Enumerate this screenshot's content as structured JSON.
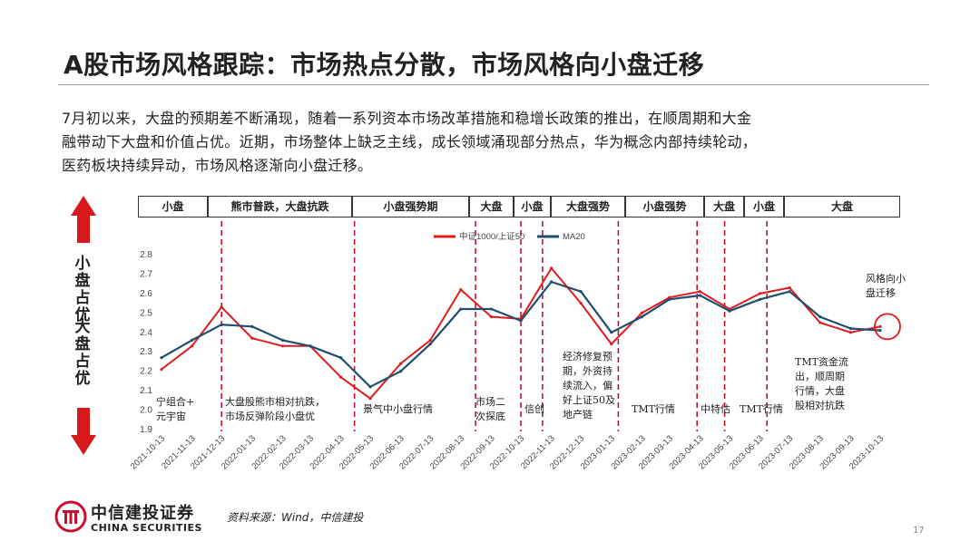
{
  "title": "A股市场风格跟踪：市场热点分散，市场风格向小盘迁移",
  "paragraph": [
    "7月初以来，大盘的预期差不断涌现，随着一系列资本市场改革措施和稳增长政策的推出，在顺周期和大金",
    "融带动下大盘和价值占优。近期，市场整体上缺乏主线，成长领域涌现部分热点，华为概念内部持续轮动，",
    "医药板块持续异动，市场风格逐渐向小盘迁移。"
  ],
  "side": {
    "top_label": "小盘占优",
    "bottom_label": "大盘占优",
    "arrow_color": "#d7191c"
  },
  "phases": [
    "小盘",
    "熊市普跌，大盘抗跌",
    "小盘强势期",
    "大盘",
    "小盘",
    "大盘强势",
    "小盘强势",
    "大盘",
    "小盘",
    "大盘"
  ],
  "annotations": [
    "宁组合+\n元宇宙",
    "大盘股熊市相对抗跌，\n市场反弹阶段小盘优",
    "景气中小盘行情",
    "市场二\n次探底",
    "信创",
    "经济修复预\n期，外资持\n续流入，偏\n好上证50及\n地产链",
    "TMT行情",
    "中特估",
    "TMT行情",
    "TMT资金流\n出，顺周期\n行情，大盘\n股相对抗跌",
    "风格向小\n盘迁移"
  ],
  "chart_data": {
    "type": "line",
    "title": "",
    "xlabel": "",
    "ylabel": "",
    "ylim": [
      1.9,
      2.8
    ],
    "yticks": [
      "1.9",
      "2.0",
      "2.1",
      "2.2",
      "2.3",
      "2.4",
      "2.5",
      "2.6",
      "2.7",
      "2.8"
    ],
    "grid": false,
    "legend": "top-center",
    "x": [
      "2021-10-13",
      "2021-11-13",
      "2021-12-13",
      "2022-01-13",
      "2022-02-13",
      "2022-03-13",
      "2022-04-13",
      "2022-05-13",
      "2022-06-13",
      "2022-07-13",
      "2022-08-13",
      "2022-09-13",
      "2022-10-13",
      "2022-11-13",
      "2022-12-13",
      "2023-01-13",
      "2023-02-13",
      "2023-03-13",
      "2023-04-13",
      "2023-05-13",
      "2023-06-13",
      "2023-07-13",
      "2023-08-13",
      "2023-09-13",
      "2023-10-13"
    ],
    "series": [
      {
        "name": "中证1000/上证50",
        "color": "#e3191b",
        "values": [
          2.21,
          2.33,
          2.53,
          2.37,
          2.33,
          2.33,
          2.17,
          2.06,
          2.24,
          2.36,
          2.62,
          2.48,
          2.47,
          2.73,
          2.55,
          2.34,
          2.5,
          2.58,
          2.61,
          2.52,
          2.6,
          2.63,
          2.45,
          2.4,
          2.43
        ]
      },
      {
        "name": "MA20",
        "color": "#1f4e6e",
        "values": [
          2.27,
          2.36,
          2.44,
          2.43,
          2.36,
          2.33,
          2.27,
          2.12,
          2.2,
          2.34,
          2.52,
          2.52,
          2.46,
          2.66,
          2.61,
          2.4,
          2.48,
          2.57,
          2.59,
          2.51,
          2.57,
          2.61,
          2.48,
          2.42,
          2.41
        ]
      }
    ],
    "xtick_labels": [
      "2021-10-13",
      "2021-11-13",
      "2021-12-13",
      "2022-01-13",
      "2022-02-13",
      "2022-03-13",
      "2022-04-13",
      "2022-05-13",
      "2022-06-13",
      "2022-07-13",
      "2022-08-13",
      "2022-09-13",
      "2022-10-13",
      "2022-11-13",
      "2022-12-13",
      "2023-01-13",
      "2023-02-13",
      "2023-03-13",
      "2023-04-13",
      "2023-05-13",
      "2023-06-13",
      "2023-07-13",
      "2023-08-13",
      "2023-09-13",
      "2023-10-13"
    ],
    "vertical_markers": [
      "2021-12-13",
      "2022-04-27",
      "2022-08-28",
      "2022-10-13",
      "2022-11-04",
      "2023-01-20",
      "2023-04-10",
      "2023-05-08",
      "2023-06-20"
    ],
    "marker_color": "#c8102e"
  },
  "footer": {
    "logo_cn": "中信建投证券",
    "logo_en": "CHINA SECURITIES",
    "source": "资料来源：Wind，中信建投",
    "page": "17",
    "brand_color": "#c8102e"
  }
}
